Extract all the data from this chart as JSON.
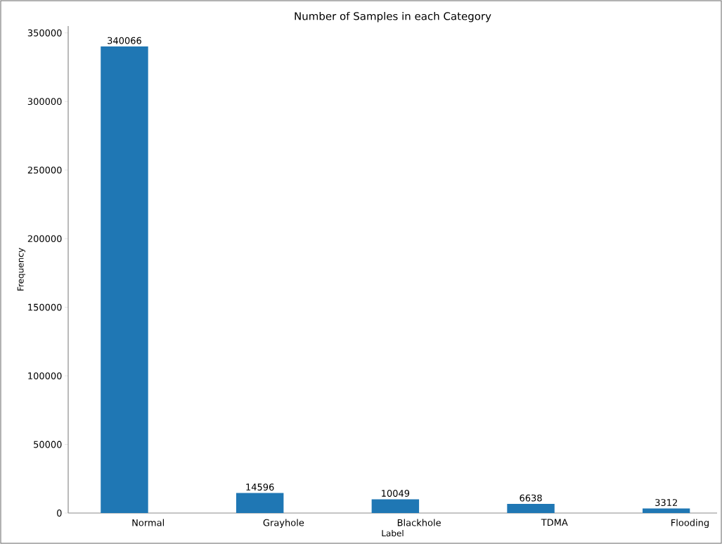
{
  "chart_data": {
    "type": "bar",
    "title": "Number of Samples in each Category",
    "xlabel": "Label",
    "ylabel": "Frequency",
    "categories": [
      "Normal",
      "Grayhole",
      "Blackhole",
      "TDMA",
      "Flooding"
    ],
    "values": [
      340066,
      14596,
      10049,
      6638,
      3312
    ],
    "color": "#1f77b4",
    "ylim": [
      0,
      355000
    ],
    "yticks": [
      0,
      50000,
      100000,
      150000,
      200000,
      250000,
      300000,
      350000
    ],
    "data_labels": true,
    "grid": false
  }
}
